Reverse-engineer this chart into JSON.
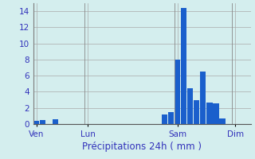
{
  "title": "",
  "xlabel": "Précipitations 24h ( mm )",
  "background_color": "#d4eeee",
  "bar_color": "#1a5fcc",
  "grid_color": "#aaaaaa",
  "tick_label_color": "#3333bb",
  "ylim": [
    0,
    15
  ],
  "yticks": [
    0,
    2,
    4,
    6,
    8,
    10,
    12,
    14
  ],
  "bar_data": [
    {
      "x": 0,
      "height": 0.4
    },
    {
      "x": 1,
      "height": 0.5
    },
    {
      "x": 2,
      "height": 0.0
    },
    {
      "x": 3,
      "height": 0.6
    },
    {
      "x": 4,
      "height": 0.0
    },
    {
      "x": 5,
      "height": 0.0
    },
    {
      "x": 6,
      "height": 0.0
    },
    {
      "x": 7,
      "height": 0.0
    },
    {
      "x": 8,
      "height": 0.0
    },
    {
      "x": 9,
      "height": 0.0
    },
    {
      "x": 10,
      "height": 0.0
    },
    {
      "x": 11,
      "height": 0.0
    },
    {
      "x": 12,
      "height": 0.0
    },
    {
      "x": 13,
      "height": 0.0
    },
    {
      "x": 14,
      "height": 0.0
    },
    {
      "x": 15,
      "height": 0.0
    },
    {
      "x": 16,
      "height": 0.0
    },
    {
      "x": 17,
      "height": 0.0
    },
    {
      "x": 18,
      "height": 0.0
    },
    {
      "x": 19,
      "height": 0.0
    },
    {
      "x": 20,
      "height": 1.2
    },
    {
      "x": 21,
      "height": 1.5
    },
    {
      "x": 22,
      "height": 8.0
    },
    {
      "x": 23,
      "height": 14.4
    },
    {
      "x": 24,
      "height": 4.4
    },
    {
      "x": 25,
      "height": 3.0
    },
    {
      "x": 26,
      "height": 6.5
    },
    {
      "x": 27,
      "height": 2.7
    },
    {
      "x": 28,
      "height": 2.6
    },
    {
      "x": 29,
      "height": 0.7
    },
    {
      "x": 30,
      "height": 0.0
    },
    {
      "x": 31,
      "height": 0.0
    },
    {
      "x": 32,
      "height": 0.0
    },
    {
      "x": 33,
      "height": 0.0
    }
  ],
  "day_ticks": [
    {
      "x": 0,
      "label": "Ven"
    },
    {
      "x": 8,
      "label": "Lun"
    },
    {
      "x": 22,
      "label": "Sam"
    },
    {
      "x": 31,
      "label": "Dim"
    }
  ],
  "xlabel_color": "#3333bb",
  "xlabel_fontsize": 8.5,
  "tick_fontsize": 7.5,
  "xlim": [
    -0.5,
    33.5
  ]
}
